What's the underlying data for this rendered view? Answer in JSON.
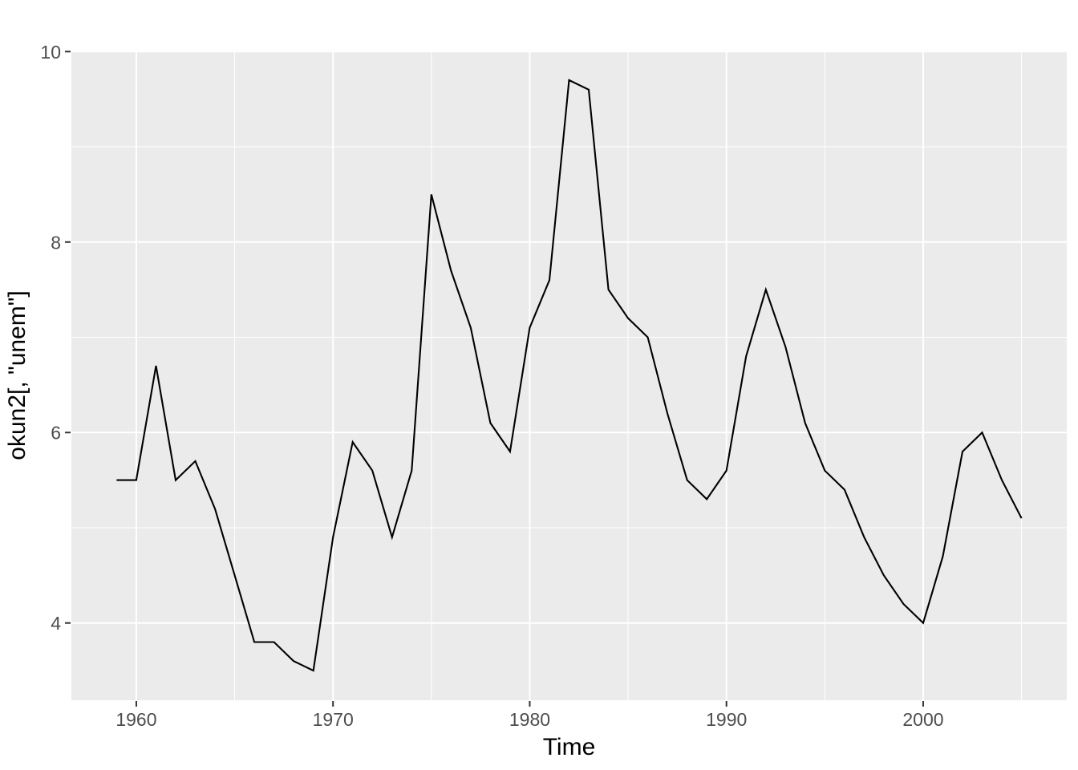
{
  "chart_data": {
    "type": "line",
    "title": "",
    "xlabel": "Time",
    "ylabel": "okun2[, \"unem\"]",
    "x": [
      1959,
      1960,
      1961,
      1962,
      1963,
      1964,
      1965,
      1966,
      1967,
      1968,
      1969,
      1970,
      1971,
      1972,
      1973,
      1974,
      1975,
      1976,
      1977,
      1978,
      1979,
      1980,
      1981,
      1982,
      1983,
      1984,
      1985,
      1986,
      1987,
      1988,
      1989,
      1990,
      1991,
      1992,
      1993,
      1994,
      1995,
      1996,
      1997,
      1998,
      1999,
      2000,
      2001,
      2002,
      2003,
      2004,
      2005
    ],
    "series": [
      {
        "name": "unem",
        "values": [
          5.5,
          5.5,
          6.7,
          5.5,
          5.7,
          5.2,
          4.5,
          3.8,
          3.8,
          3.6,
          3.5,
          4.9,
          5.9,
          5.6,
          4.9,
          5.6,
          8.5,
          7.7,
          7.1,
          6.1,
          5.8,
          7.1,
          7.6,
          9.7,
          9.6,
          7.5,
          7.2,
          7.0,
          6.2,
          5.5,
          5.3,
          5.6,
          6.8,
          7.5,
          6.9,
          6.1,
          5.6,
          5.4,
          4.9,
          4.5,
          4.2,
          4.0,
          4.7,
          5.8,
          6.0,
          5.5,
          5.1
        ]
      }
    ],
    "xlim": [
      1956.7,
      2007.3
    ],
    "ylim": [
      3.189,
      10.011
    ],
    "x_ticks": [
      1960,
      1970,
      1980,
      1990,
      2000
    ],
    "y_ticks": [
      4,
      6,
      8,
      10
    ],
    "x_minor_ticks": [
      1965,
      1975,
      1985,
      1995,
      2005
    ],
    "y_minor_ticks": [
      5,
      7,
      9
    ],
    "grid": "on",
    "legend": "none",
    "colors": {
      "line": "#000000",
      "panel_background": "#EBEBEB",
      "grid": "#FFFFFF",
      "tick_label": "#4D4D4D",
      "tick_mark": "#333333",
      "axis_title": "#000000",
      "figure_background": "#FFFFFF"
    }
  }
}
